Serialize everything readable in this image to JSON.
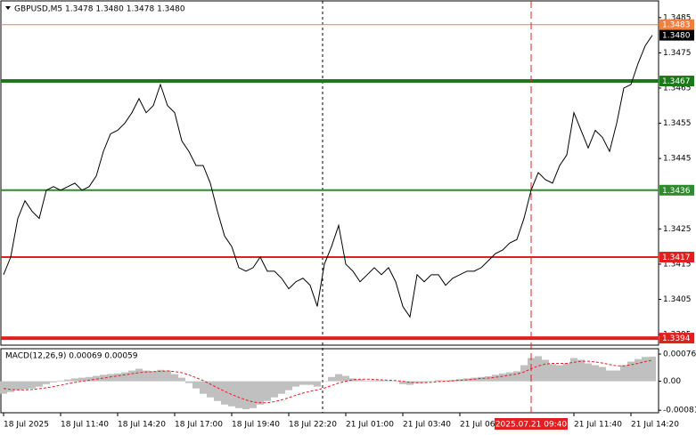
{
  "chart_data": {
    "type": "line",
    "title": "GBPUSD,M5  1.3478 1.3480 1.3478 1.3480",
    "ylim": [
      1.3392,
      1.349
    ],
    "yticks": [
      1.3485,
      1.3475,
      1.3465,
      1.3455,
      1.3445,
      1.3425,
      1.3415,
      1.3405,
      1.3395
    ],
    "xlim": [
      0,
      91
    ],
    "xticks": [
      {
        "value": 0,
        "label": "18 Jul 2025"
      },
      {
        "value": 8,
        "label": "18 Jul 11:40"
      },
      {
        "value": 16,
        "label": "18 Jul 14:20"
      },
      {
        "value": 24,
        "label": "18 Jul 17:00"
      },
      {
        "value": 32,
        "label": "18 Jul 19:40"
      },
      {
        "value": 40,
        "label": "18 Jul 22:20"
      },
      {
        "value": 48,
        "label": "21 Jul 01:00"
      },
      {
        "value": 56,
        "label": "21 Jul 03:40"
      },
      {
        "value": 64,
        "label": "21 Jul 06:20"
      },
      {
        "value": 80,
        "label": "21 Jul 11:40"
      },
      {
        "value": 88,
        "label": "21 Jul 14:20"
      }
    ],
    "highlight": {
      "value": 74,
      "label": "2025.07.21 09:40",
      "color": "#e02020"
    },
    "last_price": {
      "value": 1.348,
      "label": "1.3480",
      "color": "#000000"
    },
    "levels": [
      {
        "value": 1.3483,
        "color": "#f08040",
        "width": 1
      },
      {
        "value": 1.3467,
        "color": "#1a7a1a",
        "width": 4
      },
      {
        "value": 1.3436,
        "color": "#2e8b2e",
        "width": 2
      },
      {
        "value": 1.3417,
        "color": "#e02020",
        "width": 2
      },
      {
        "value": 1.3394,
        "color": "#e02020",
        "width": 4
      }
    ],
    "series": [
      {
        "name": "GBPUSD",
        "color": "#000000",
        "values": [
          1.3412,
          1.3417,
          1.3428,
          1.3433,
          1.343,
          1.3428,
          1.3436,
          1.3437,
          1.3436,
          1.3437,
          1.3438,
          1.3436,
          1.3437,
          1.344,
          1.3447,
          1.3452,
          1.3453,
          1.3455,
          1.3458,
          1.3462,
          1.3458,
          1.346,
          1.3466,
          1.346,
          1.3458,
          1.345,
          1.3447,
          1.3443,
          1.3443,
          1.3438,
          1.343,
          1.3423,
          1.342,
          1.3414,
          1.3413,
          1.3414,
          1.3417,
          1.3413,
          1.3413,
          1.3411,
          1.3408,
          1.341,
          1.3411,
          1.3409,
          1.3403,
          1.3415,
          1.342,
          1.3426,
          1.3415,
          1.3413,
          1.341,
          1.3412,
          1.3414,
          1.3412,
          1.3414,
          1.341,
          1.3403,
          1.34,
          1.3412,
          1.341,
          1.3412,
          1.3412,
          1.3409,
          1.3411,
          1.3412,
          1.3413,
          1.3413,
          1.3414,
          1.3416,
          1.3418,
          1.3419,
          1.3421,
          1.3422,
          1.3428,
          1.3436,
          1.3441,
          1.3439,
          1.3438,
          1.3443,
          1.3446,
          1.3458,
          1.3453,
          1.3448,
          1.3453,
          1.3451,
          1.3447,
          1.3455,
          1.3465,
          1.3466,
          1.3472,
          1.3477,
          1.348
        ]
      }
    ],
    "indicator": {
      "type": "bar",
      "title": "MACD(12,26,9) 0.00069 0.00059",
      "ylim": [
        -0.00088,
        0.00091
      ],
      "yticks": [
        0.00076,
        {
          "value": 0,
          "label": "0.00"
        },
        -0.00081
      ],
      "series": [
        {
          "name": "MACD",
          "color": "#c0c0c0",
          "values": [
            -0.00035,
            -0.0003,
            -0.00025,
            -0.00022,
            -0.0002,
            -0.00015,
            -8e-05,
            -3e-05,
            2e-05,
            5e-05,
            8e-05,
            0.0001,
            0.00012,
            0.00015,
            0.00018,
            0.0002,
            0.00022,
            0.00025,
            0.0003,
            0.00035,
            0.0003,
            0.00028,
            0.00032,
            0.0003,
            0.0002,
            0.0001,
            -5e-05,
            -0.0002,
            -0.00035,
            -0.00045,
            -0.00055,
            -0.00065,
            -0.0007,
            -0.00075,
            -0.00078,
            -0.00075,
            -0.00065,
            -0.00055,
            -0.00045,
            -0.00035,
            -0.00025,
            -0.00015,
            -0.0001,
            -0.0001,
            -0.00015,
            0,
            0.00012,
            0.0002,
            0.00015,
            8e-05,
            5e-05,
            2e-05,
            3e-05,
            3e-05,
            2e-05,
            0,
            -8e-05,
            -0.0001,
            -5e-05,
            -3e-05,
            0,
            3e-05,
            2e-05,
            4e-05,
            6e-05,
            8e-05,
            0.0001,
            0.00012,
            0.00014,
            0.00018,
            0.00022,
            0.00025,
            0.00028,
            0.00045,
            0.00065,
            0.0007,
            0.0006,
            0.00048,
            0.00045,
            0.0005,
            0.00065,
            0.0006,
            0.0005,
            0.00045,
            0.0004,
            0.0003,
            0.0003,
            0.00045,
            0.00055,
            0.00062,
            0.00068,
            0.00069
          ]
        },
        {
          "name": "Signal",
          "color": "#e02020",
          "values": [
            -0.0002,
            -0.00023,
            -0.00024,
            -0.00024,
            -0.00023,
            -0.00021,
            -0.00018,
            -0.00015,
            -0.00011,
            -7e-05,
            -3e-05,
            0,
            3e-05,
            6e-05,
            9e-05,
            0.00012,
            0.00015,
            0.00018,
            0.00021,
            0.00024,
            0.00026,
            0.00027,
            0.00028,
            0.00029,
            0.00027,
            0.00024,
            0.00018,
            0.0001,
            2e-05,
            -8e-05,
            -0.00018,
            -0.00028,
            -0.00037,
            -0.00045,
            -0.00052,
            -0.00058,
            -0.0006,
            -0.0006,
            -0.00057,
            -0.00052,
            -0.00046,
            -0.00039,
            -0.00033,
            -0.00028,
            -0.00024,
            -0.00019,
            -0.00012,
            -5e-05,
            0,
            4e-05,
            6e-05,
            6e-05,
            5e-05,
            4e-05,
            3e-05,
            2e-05,
            0,
            -3e-05,
            -4e-05,
            -4e-05,
            -3e-05,
            -1e-05,
            0,
            1e-05,
            3e-05,
            4e-05,
            6e-05,
            8e-05,
            9e-05,
            0.00011,
            0.00014,
            0.00017,
            0.0002,
            0.00026,
            0.00035,
            0.00043,
            0.00048,
            0.0005,
            0.0005,
            0.0005,
            0.00053,
            0.00056,
            0.00056,
            0.00054,
            0.00051,
            0.00047,
            0.00043,
            0.00043,
            0.00046,
            0.0005,
            0.00055,
            0.00059
          ]
        }
      ]
    }
  }
}
